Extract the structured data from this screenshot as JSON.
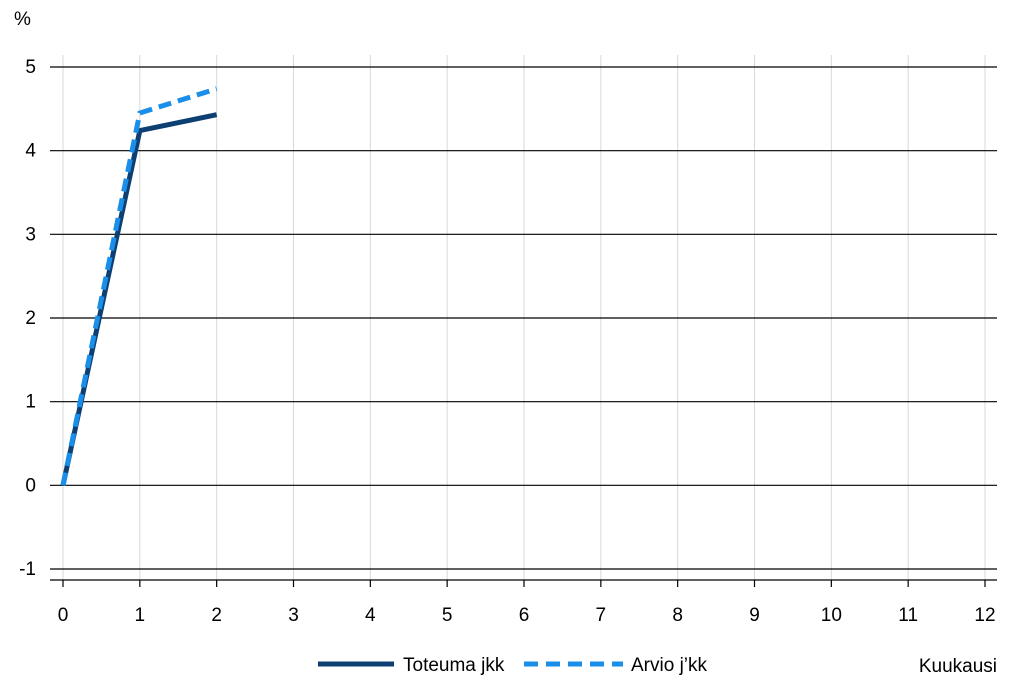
{
  "chart_data": {
    "type": "line",
    "title": "",
    "ylabel": "%",
    "xlabel": "Kuukausi",
    "x": [
      0,
      1,
      2
    ],
    "series": [
      {
        "name": "Toteuma jkk",
        "values": [
          0,
          4.24,
          4.43
        ],
        "color": "#0d3f73",
        "style": "solid"
      },
      {
        "name": "Arvio j’kk",
        "values": [
          0,
          4.45,
          4.74
        ],
        "color": "#1a8fea",
        "style": "dashed"
      }
    ],
    "xlim": [
      0,
      12
    ],
    "ylim": [
      -1,
      5
    ],
    "xticks": [
      0,
      1,
      2,
      3,
      4,
      5,
      6,
      7,
      8,
      9,
      10,
      11,
      12
    ],
    "yticks": [
      -1,
      0,
      1,
      2,
      3,
      4,
      5
    ],
    "grid": {
      "horizontal": true,
      "vertical": true
    },
    "legend_position": "bottom-center"
  }
}
